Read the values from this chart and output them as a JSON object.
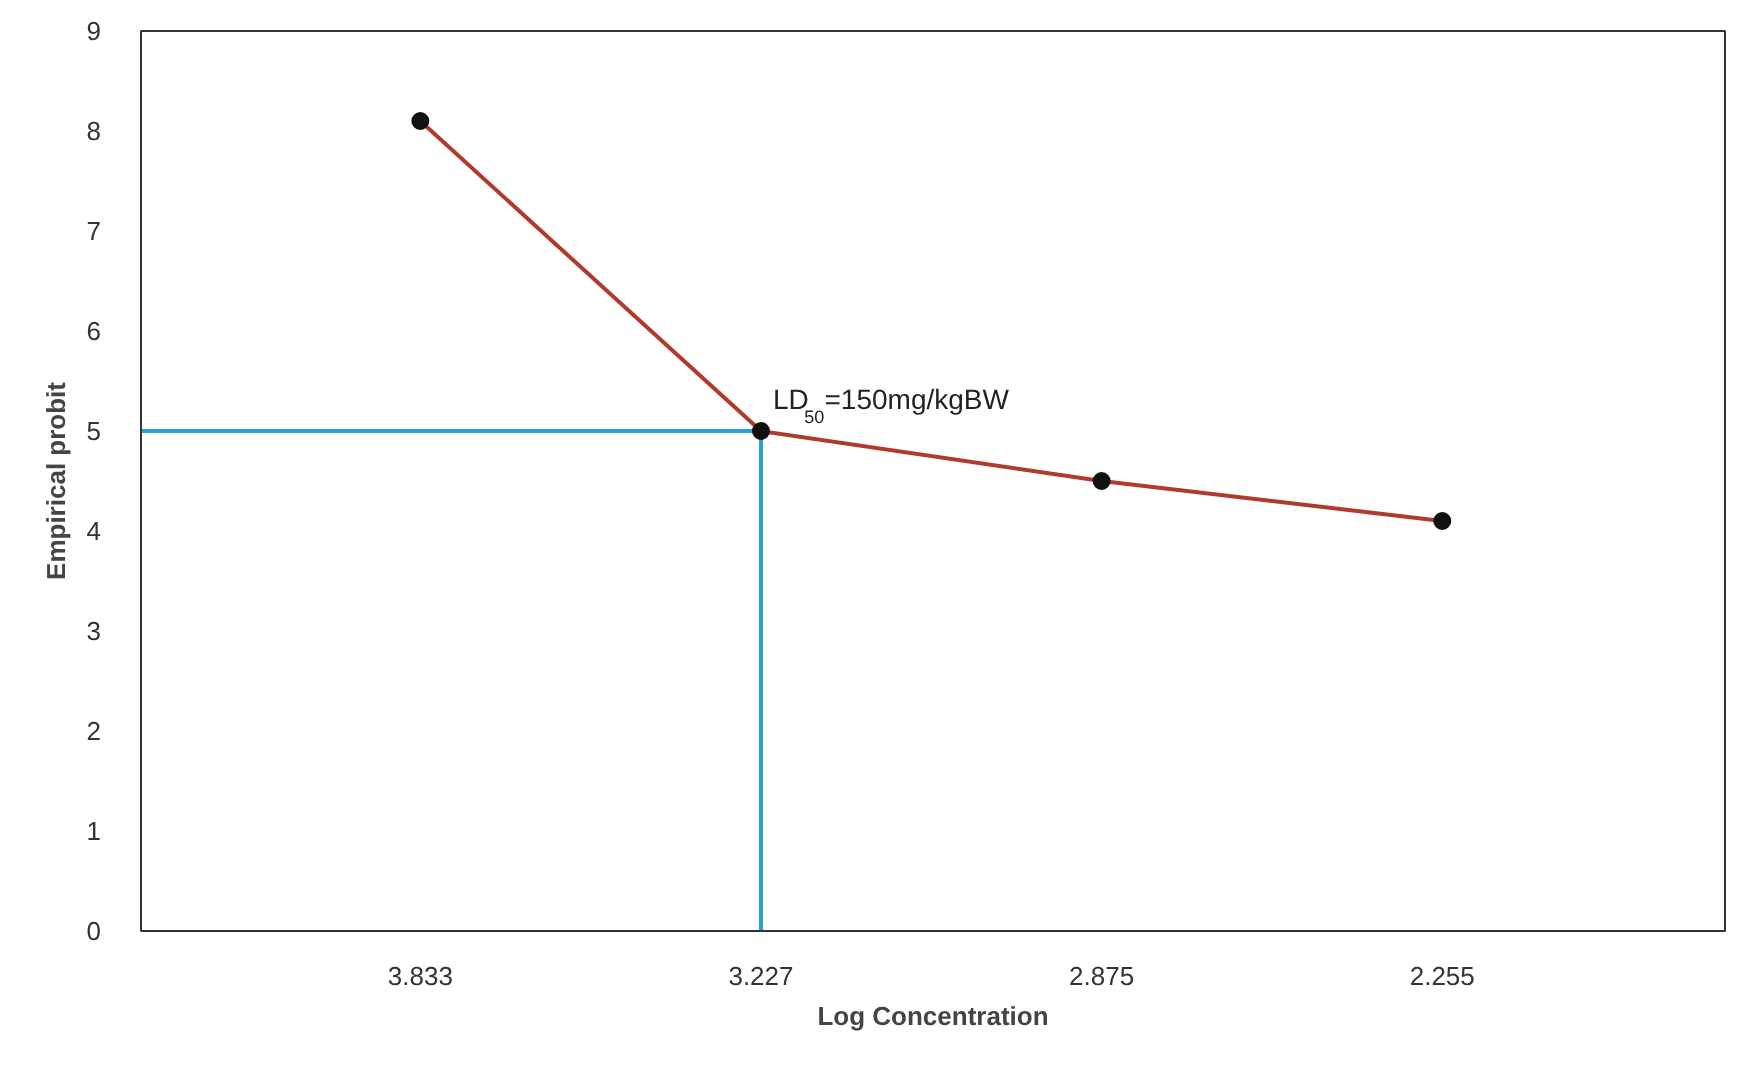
{
  "chart_data": {
    "type": "line",
    "xlabel": "Log Concentration",
    "ylabel": "Empirical probit",
    "categories": [
      "3.833",
      "3.227",
      "2.875",
      "2.255"
    ],
    "series": [
      {
        "color": "#b23a2c",
        "values": [
          8.1,
          5.0,
          4.5,
          4.1
        ]
      }
    ],
    "marker": "circle",
    "line_style": "solid",
    "grid": false,
    "ylim": [
      0,
      9
    ],
    "yticks": [
      0,
      1,
      2,
      3,
      4,
      5,
      6,
      7,
      8,
      9
    ],
    "ref_lines": [
      {
        "axis": "y",
        "value": 5,
        "color": "#2a9fd0"
      },
      {
        "axis": "x",
        "value": "3.227",
        "color": "#2a9fd0"
      }
    ],
    "annotations": [
      {
        "text": "LD$_{50}$=150mg/kgBW",
        "x": "3.227",
        "y": 5
      }
    ]
  }
}
